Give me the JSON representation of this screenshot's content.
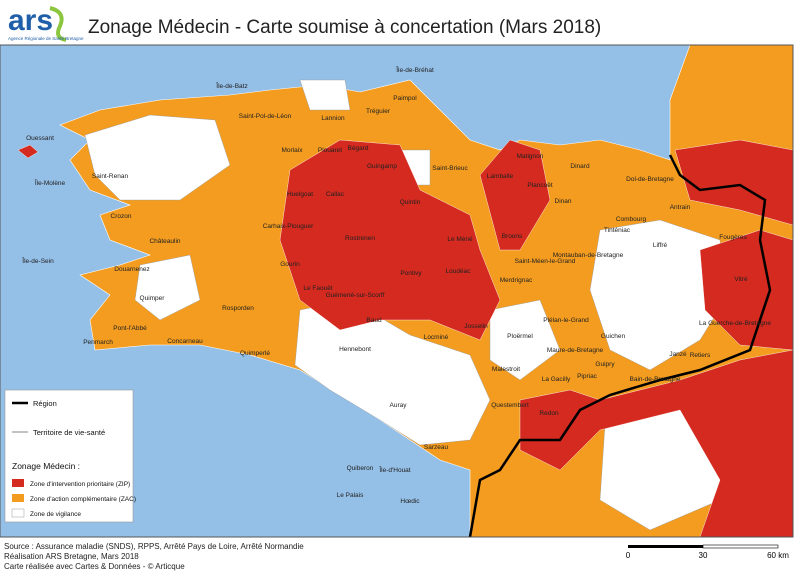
{
  "header": {
    "logo": "ars",
    "logo_subtitle": "Agence Régionale de Santé Bretagne",
    "title": "Zonage Médecin - Carte soumise à concertation (Mars 2018)"
  },
  "map": {
    "places": [
      "Île-de-Bréhat",
      "Île-de-Batz",
      "Lannion",
      "Tréguier",
      "Paimpol",
      "Ouessant",
      "Île-Molène",
      "Saint-Pol-de-Léon",
      "Morlaix",
      "Plouaret",
      "Bégard",
      "Guingamp",
      "Saint-Brieuc",
      "Lamballe",
      "Matignon",
      "Dinard",
      "Dinan",
      "Dol-de-Bretagne",
      "Plancoët",
      "Saint-Renan",
      "Carhaix-Plouguer",
      "Huelgoat",
      "Callac",
      "Rostrenen",
      "Quintin",
      "Loudéac",
      "Pontivy",
      "Le Méné",
      "Broons",
      "Montauban-de-Bretagne",
      "Saint-Méen-le-Grand",
      "Merdrignac",
      "Châteaulin",
      "Crozon",
      "Douarnenez",
      "Quimper",
      "Pont-l'Abbé",
      "Penmarch",
      "Concarneau",
      "Rosporden",
      "Quimperlé",
      "Gourin",
      "Le Faouët",
      "Guémené-sur-Scorff",
      "Hennebont",
      "Baud",
      "Locminé",
      "Josselin",
      "Ploërmel",
      "Malestroit",
      "Auray",
      "Quiberon",
      "Questembert",
      "La Gacilly",
      "Redon",
      "Pipriac",
      "Guichen",
      "Janzé",
      "Retiers",
      "Vitré",
      "Fougères",
      "Combourg",
      "Tinténiac",
      "Liffré",
      "Antrain",
      "La Guerche-de-Bretagne",
      "Bain-de-Bretagne",
      "Guipry",
      "Maure-de-Bretagne",
      "Plélan-le-Grand",
      "Sarzeau",
      "Le Palais",
      "Île-d'Houat",
      "Hœdic",
      "Île-de-Sein"
    ]
  },
  "legend": {
    "region": "Région",
    "territory": "Territoire de vie-santé",
    "title": "Zonage Médecin :",
    "zip": "Zone d'intervention prioritaire (ZIP)",
    "zac": "Zone d'action complémentaire (ZAC)",
    "vigilance": "Zone de vigilance"
  },
  "footer": {
    "source_lines": [
      "Source : Assurance maladie (SNDS), RPPS, Arrêté Pays de Loire, Arrêté Normandie",
      "Réalisation ARS Bretagne, Mars 2018",
      "Carte réalisée avec Cartes & Données - © Articque"
    ]
  },
  "scale": {
    "labels": [
      "0",
      "30",
      "60 km"
    ]
  }
}
